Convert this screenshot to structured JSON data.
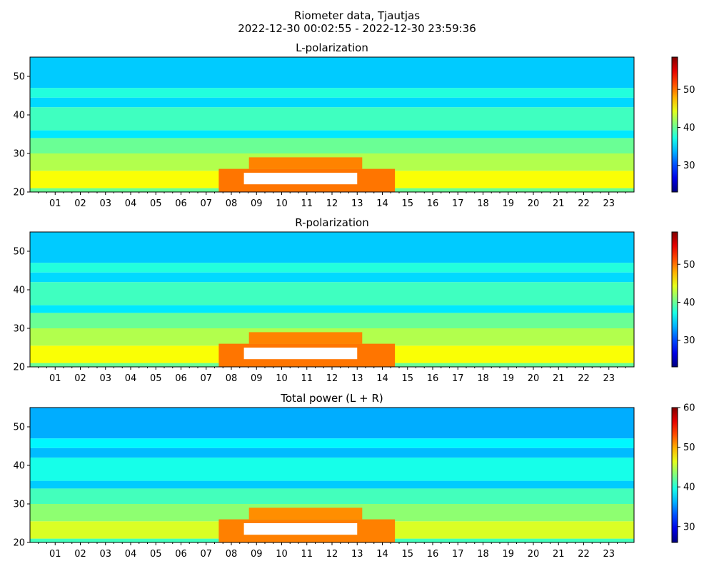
{
  "figure": {
    "title": "Riometer data, Tjautjas",
    "subtitle": "2022-12-30 00:02:55 - 2022-12-30 23:59:36"
  },
  "chart_data": [
    {
      "type": "heatmap",
      "title": "L-polarization",
      "xlabel": "",
      "ylabel": "",
      "xlim": [
        0,
        24
      ],
      "ylim": [
        20,
        55
      ],
      "x_ticks": [
        "01",
        "02",
        "03",
        "04",
        "05",
        "06",
        "07",
        "08",
        "09",
        "10",
        "11",
        "12",
        "13",
        "14",
        "15",
        "16",
        "17",
        "18",
        "19",
        "20",
        "21",
        "22",
        "23"
      ],
      "y_ticks": [
        20,
        30,
        40,
        50
      ],
      "colormap": "jet",
      "colorbar": {
        "vmin": 23,
        "vmax": 58.5,
        "ticks": [
          30,
          40,
          50
        ]
      },
      "bands": [
        {
          "y": [
            20,
            21
          ],
          "value": 40
        },
        {
          "y": [
            21,
            25.5
          ],
          "value": 45
        },
        {
          "y": [
            25.5,
            30
          ],
          "value": 42.5
        },
        {
          "y": [
            30,
            34
          ],
          "value": 40
        },
        {
          "y": [
            34,
            36
          ],
          "value": 35.5
        },
        {
          "y": [
            36,
            42
          ],
          "value": 38.5
        },
        {
          "y": [
            42,
            44.5
          ],
          "value": 35
        },
        {
          "y": [
            44.5,
            47
          ],
          "value": 37.5
        },
        {
          "y": [
            47,
            55
          ],
          "value": 34.5
        }
      ],
      "hot_regions": [
        {
          "x": [
            8.7,
            13.2
          ],
          "y": [
            26,
            29
          ],
          "value": 49.5
        },
        {
          "x": [
            7.5,
            14.5
          ],
          "y": [
            20,
            26
          ],
          "value": 50
        },
        {
          "x": [
            8.5,
            13.0
          ],
          "y": [
            22,
            25
          ],
          "value": 60
        }
      ]
    },
    {
      "type": "heatmap",
      "title": "R-polarization",
      "xlabel": "",
      "ylabel": "",
      "xlim": [
        0,
        24
      ],
      "ylim": [
        20,
        55
      ],
      "x_ticks": [
        "01",
        "02",
        "03",
        "04",
        "05",
        "06",
        "07",
        "08",
        "09",
        "10",
        "11",
        "12",
        "13",
        "14",
        "15",
        "16",
        "17",
        "18",
        "19",
        "20",
        "21",
        "22",
        "23"
      ],
      "y_ticks": [
        20,
        30,
        40,
        50
      ],
      "colormap": "jet",
      "colorbar": {
        "vmin": 23,
        "vmax": 58.5,
        "ticks": [
          30,
          40,
          50
        ]
      },
      "bands": [
        {
          "y": [
            20,
            21
          ],
          "value": 40
        },
        {
          "y": [
            21,
            25.5
          ],
          "value": 45
        },
        {
          "y": [
            25.5,
            30
          ],
          "value": 42.5
        },
        {
          "y": [
            30,
            34
          ],
          "value": 40
        },
        {
          "y": [
            34,
            36
          ],
          "value": 35.5
        },
        {
          "y": [
            36,
            42
          ],
          "value": 38.5
        },
        {
          "y": [
            42,
            44.5
          ],
          "value": 35
        },
        {
          "y": [
            44.5,
            47
          ],
          "value": 37.5
        },
        {
          "y": [
            47,
            55
          ],
          "value": 34.5
        }
      ],
      "hot_regions": [
        {
          "x": [
            8.7,
            13.2
          ],
          "y": [
            26,
            29
          ],
          "value": 49.5
        },
        {
          "x": [
            7.5,
            14.5
          ],
          "y": [
            20,
            26
          ],
          "value": 50
        },
        {
          "x": [
            8.5,
            13.0
          ],
          "y": [
            22,
            25
          ],
          "value": 60
        }
      ]
    },
    {
      "type": "heatmap",
      "title": "Total power (L + R)",
      "xlabel": "",
      "ylabel": "",
      "xlim": [
        0,
        24
      ],
      "ylim": [
        20,
        55
      ],
      "x_ticks": [
        "01",
        "02",
        "03",
        "04",
        "05",
        "06",
        "07",
        "08",
        "09",
        "10",
        "11",
        "12",
        "13",
        "14",
        "15",
        "16",
        "17",
        "18",
        "19",
        "20",
        "21",
        "22",
        "23"
      ],
      "y_ticks": [
        20,
        30,
        40,
        50
      ],
      "colormap": "jet",
      "colorbar": {
        "vmin": 26,
        "vmax": 60,
        "ticks": [
          30,
          40,
          50,
          60
        ]
      },
      "bands": [
        {
          "y": [
            20,
            21
          ],
          "value": 41
        },
        {
          "y": [
            21,
            25.5
          ],
          "value": 46
        },
        {
          "y": [
            25.5,
            30
          ],
          "value": 43.5
        },
        {
          "y": [
            30,
            34
          ],
          "value": 41
        },
        {
          "y": [
            34,
            36
          ],
          "value": 37
        },
        {
          "y": [
            36,
            42
          ],
          "value": 39.5
        },
        {
          "y": [
            42,
            44.5
          ],
          "value": 36.5
        },
        {
          "y": [
            44.5,
            47
          ],
          "value": 38.5
        },
        {
          "y": [
            47,
            55
          ],
          "value": 36
        }
      ],
      "hot_regions": [
        {
          "x": [
            8.7,
            13.2
          ],
          "y": [
            26,
            29
          ],
          "value": 51
        },
        {
          "x": [
            7.5,
            14.5
          ],
          "y": [
            20,
            26
          ],
          "value": 51.5
        },
        {
          "x": [
            8.5,
            13.0
          ],
          "y": [
            22,
            25
          ],
          "value": 62
        }
      ]
    }
  ]
}
